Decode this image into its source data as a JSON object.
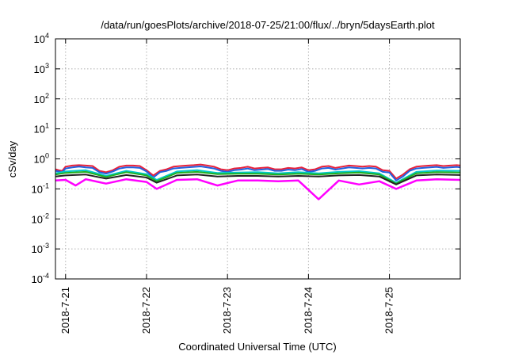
{
  "chart_data": {
    "type": "line",
    "title": "/data/run/goesPlots/archive/2018-07-25/21:00/flux/../bryn/5daysEarth.plot",
    "xlabel": "Coordinated Universal Time (UTC)",
    "ylabel": "cSv/day",
    "y_scale": "log",
    "ylim": [
      0.0001,
      10000
    ],
    "y_ticks": [
      {
        "value": 0.0001,
        "base": "10",
        "exp": "-4"
      },
      {
        "value": 0.001,
        "base": "10",
        "exp": "-3"
      },
      {
        "value": 0.01,
        "base": "10",
        "exp": "-2"
      },
      {
        "value": 0.1,
        "base": "10",
        "exp": "-1"
      },
      {
        "value": 1,
        "base": "10",
        "exp": "0"
      },
      {
        "value": 10,
        "base": "10",
        "exp": "1"
      },
      {
        "value": 100,
        "base": "10",
        "exp": "2"
      },
      {
        "value": 1000,
        "base": "10",
        "exp": "3"
      },
      {
        "value": 10000,
        "base": "10",
        "exp": "4"
      }
    ],
    "xlim": [
      "2018-07-20 21:00",
      "2018-07-25 21:00"
    ],
    "x_ticks": [
      {
        "value": "2018-07-21 00:00",
        "label": "2018-7-21"
      },
      {
        "value": "2018-07-22 00:00",
        "label": "2018-7-22"
      },
      {
        "value": "2018-07-23 00:00",
        "label": "2018-7-23"
      },
      {
        "value": "2018-07-24 00:00",
        "label": "2018-7-24"
      },
      {
        "value": "2018-07-25 00:00",
        "label": "2018-7-25"
      }
    ],
    "grid": true,
    "legend": "none",
    "series": [
      {
        "color": "#e8203a",
        "values": [
          [
            "2018-07-20 21:00",
            0.45
          ],
          [
            "2018-07-20 22:00",
            0.42
          ],
          [
            "2018-07-20 23:00",
            0.4
          ],
          [
            "2018-07-21 00:00",
            0.55
          ],
          [
            "2018-07-21 02:00",
            0.6
          ],
          [
            "2018-07-21 04:00",
            0.62
          ],
          [
            "2018-07-21 06:00",
            0.6
          ],
          [
            "2018-07-21 08:00",
            0.58
          ],
          [
            "2018-07-21 10:00",
            0.4
          ],
          [
            "2018-07-21 12:00",
            0.36
          ],
          [
            "2018-07-21 14:00",
            0.42
          ],
          [
            "2018-07-21 16:00",
            0.55
          ],
          [
            "2018-07-21 18:00",
            0.6
          ],
          [
            "2018-07-21 20:00",
            0.6
          ],
          [
            "2018-07-21 22:00",
            0.58
          ],
          [
            "2018-07-22 00:00",
            0.42
          ],
          [
            "2018-07-22 02:00",
            0.28
          ],
          [
            "2018-07-22 04:00",
            0.4
          ],
          [
            "2018-07-22 06:00",
            0.45
          ],
          [
            "2018-07-22 08:00",
            0.55
          ],
          [
            "2018-07-22 10:00",
            0.58
          ],
          [
            "2018-07-22 12:00",
            0.6
          ],
          [
            "2018-07-22 14:00",
            0.62
          ],
          [
            "2018-07-22 16:00",
            0.65
          ],
          [
            "2018-07-22 18:00",
            0.6
          ],
          [
            "2018-07-22 20:00",
            0.55
          ],
          [
            "2018-07-22 22:00",
            0.45
          ],
          [
            "2018-07-23 00:00",
            0.42
          ],
          [
            "2018-07-23 02:00",
            0.48
          ],
          [
            "2018-07-23 04:00",
            0.5
          ],
          [
            "2018-07-23 06:00",
            0.55
          ],
          [
            "2018-07-23 08:00",
            0.48
          ],
          [
            "2018-07-23 10:00",
            0.5
          ],
          [
            "2018-07-23 12:00",
            0.52
          ],
          [
            "2018-07-23 14:00",
            0.45
          ],
          [
            "2018-07-23 16:00",
            0.45
          ],
          [
            "2018-07-23 18:00",
            0.5
          ],
          [
            "2018-07-23 20:00",
            0.48
          ],
          [
            "2018-07-23 22:00",
            0.52
          ],
          [
            "2018-07-24 00:00",
            0.42
          ],
          [
            "2018-07-24 02:00",
            0.45
          ],
          [
            "2018-07-24 04:00",
            0.55
          ],
          [
            "2018-07-24 06:00",
            0.58
          ],
          [
            "2018-07-24 08:00",
            0.5
          ],
          [
            "2018-07-24 10:00",
            0.55
          ],
          [
            "2018-07-24 12:00",
            0.6
          ],
          [
            "2018-07-24 14:00",
            0.58
          ],
          [
            "2018-07-24 16:00",
            0.55
          ],
          [
            "2018-07-24 18:00",
            0.58
          ],
          [
            "2018-07-24 20:00",
            0.55
          ],
          [
            "2018-07-24 22:00",
            0.42
          ],
          [
            "2018-07-25 00:00",
            0.4
          ],
          [
            "2018-07-25 02:00",
            0.22
          ],
          [
            "2018-07-25 04:00",
            0.3
          ],
          [
            "2018-07-25 06:00",
            0.45
          ],
          [
            "2018-07-25 08:00",
            0.55
          ],
          [
            "2018-07-25 10:00",
            0.58
          ],
          [
            "2018-07-25 12:00",
            0.6
          ],
          [
            "2018-07-25 14:00",
            0.62
          ],
          [
            "2018-07-25 16:00",
            0.58
          ],
          [
            "2018-07-25 18:00",
            0.6
          ],
          [
            "2018-07-25 20:00",
            0.62
          ],
          [
            "2018-07-25 21:00",
            0.6
          ]
        ]
      },
      {
        "color": "#2060e0",
        "values": [
          [
            "2018-07-20 21:00",
            0.4
          ],
          [
            "2018-07-20 22:00",
            0.38
          ],
          [
            "2018-07-20 23:00",
            0.36
          ],
          [
            "2018-07-21 00:00",
            0.48
          ],
          [
            "2018-07-21 02:00",
            0.52
          ],
          [
            "2018-07-21 04:00",
            0.55
          ],
          [
            "2018-07-21 06:00",
            0.52
          ],
          [
            "2018-07-21 08:00",
            0.5
          ],
          [
            "2018-07-21 10:00",
            0.36
          ],
          [
            "2018-07-21 12:00",
            0.32
          ],
          [
            "2018-07-21 14:00",
            0.38
          ],
          [
            "2018-07-21 16:00",
            0.48
          ],
          [
            "2018-07-21 18:00",
            0.52
          ],
          [
            "2018-07-21 20:00",
            0.52
          ],
          [
            "2018-07-21 22:00",
            0.5
          ],
          [
            "2018-07-22 00:00",
            0.38
          ],
          [
            "2018-07-22 02:00",
            0.24
          ],
          [
            "2018-07-22 04:00",
            0.36
          ],
          [
            "2018-07-22 06:00",
            0.4
          ],
          [
            "2018-07-22 08:00",
            0.48
          ],
          [
            "2018-07-22 10:00",
            0.5
          ],
          [
            "2018-07-22 12:00",
            0.52
          ],
          [
            "2018-07-22 14:00",
            0.54
          ],
          [
            "2018-07-22 16:00",
            0.56
          ],
          [
            "2018-07-22 18:00",
            0.52
          ],
          [
            "2018-07-22 20:00",
            0.48
          ],
          [
            "2018-07-22 22:00",
            0.4
          ],
          [
            "2018-07-23 00:00",
            0.37
          ],
          [
            "2018-07-23 02:00",
            0.42
          ],
          [
            "2018-07-23 04:00",
            0.44
          ],
          [
            "2018-07-23 06:00",
            0.48
          ],
          [
            "2018-07-23 08:00",
            0.42
          ],
          [
            "2018-07-23 10:00",
            0.44
          ],
          [
            "2018-07-23 12:00",
            0.46
          ],
          [
            "2018-07-23 14:00",
            0.4
          ],
          [
            "2018-07-23 16:00",
            0.4
          ],
          [
            "2018-07-23 18:00",
            0.44
          ],
          [
            "2018-07-23 20:00",
            0.42
          ],
          [
            "2018-07-23 22:00",
            0.46
          ],
          [
            "2018-07-24 00:00",
            0.37
          ],
          [
            "2018-07-24 02:00",
            0.4
          ],
          [
            "2018-07-24 04:00",
            0.48
          ],
          [
            "2018-07-24 06:00",
            0.5
          ],
          [
            "2018-07-24 08:00",
            0.44
          ],
          [
            "2018-07-24 10:00",
            0.48
          ],
          [
            "2018-07-24 12:00",
            0.52
          ],
          [
            "2018-07-24 14:00",
            0.5
          ],
          [
            "2018-07-24 16:00",
            0.48
          ],
          [
            "2018-07-24 18:00",
            0.5
          ],
          [
            "2018-07-24 20:00",
            0.48
          ],
          [
            "2018-07-24 22:00",
            0.37
          ],
          [
            "2018-07-25 00:00",
            0.35
          ],
          [
            "2018-07-25 02:00",
            0.19
          ],
          [
            "2018-07-25 04:00",
            0.26
          ],
          [
            "2018-07-25 06:00",
            0.4
          ],
          [
            "2018-07-25 08:00",
            0.48
          ],
          [
            "2018-07-25 10:00",
            0.5
          ],
          [
            "2018-07-25 12:00",
            0.52
          ],
          [
            "2018-07-25 14:00",
            0.54
          ],
          [
            "2018-07-25 16:00",
            0.5
          ],
          [
            "2018-07-25 18:00",
            0.52
          ],
          [
            "2018-07-25 20:00",
            0.54
          ],
          [
            "2018-07-25 21:00",
            0.52
          ]
        ]
      },
      {
        "color": "#00c8c8",
        "values": [
          [
            "2018-07-20 21:00",
            0.33
          ],
          [
            "2018-07-21 00:00",
            0.38
          ],
          [
            "2018-07-21 06:00",
            0.42
          ],
          [
            "2018-07-21 12:00",
            0.27
          ],
          [
            "2018-07-21 18:00",
            0.4
          ],
          [
            "2018-07-22 00:00",
            0.31
          ],
          [
            "2018-07-22 03:00",
            0.2
          ],
          [
            "2018-07-22 09:00",
            0.38
          ],
          [
            "2018-07-22 15:00",
            0.42
          ],
          [
            "2018-07-22 21:00",
            0.34
          ],
          [
            "2018-07-23 03:00",
            0.35
          ],
          [
            "2018-07-23 09:00",
            0.36
          ],
          [
            "2018-07-23 15:00",
            0.33
          ],
          [
            "2018-07-23 21:00",
            0.36
          ],
          [
            "2018-07-24 03:00",
            0.33
          ],
          [
            "2018-07-24 09:00",
            0.37
          ],
          [
            "2018-07-24 15:00",
            0.39
          ],
          [
            "2018-07-24 21:00",
            0.33
          ],
          [
            "2018-07-25 02:00",
            0.16
          ],
          [
            "2018-07-25 08:00",
            0.37
          ],
          [
            "2018-07-25 14:00",
            0.41
          ],
          [
            "2018-07-25 21:00",
            0.4
          ]
        ]
      },
      {
        "color": "#20b020",
        "values": [
          [
            "2018-07-20 21:00",
            0.3
          ],
          [
            "2018-07-21 00:00",
            0.34
          ],
          [
            "2018-07-21 06:00",
            0.37
          ],
          [
            "2018-07-21 12:00",
            0.25
          ],
          [
            "2018-07-21 18:00",
            0.36
          ],
          [
            "2018-07-22 00:00",
            0.28
          ],
          [
            "2018-07-22 03:00",
            0.18
          ],
          [
            "2018-07-22 09:00",
            0.34
          ],
          [
            "2018-07-22 15:00",
            0.37
          ],
          [
            "2018-07-22 21:00",
            0.31
          ],
          [
            "2018-07-23 03:00",
            0.32
          ],
          [
            "2018-07-23 09:00",
            0.32
          ],
          [
            "2018-07-23 15:00",
            0.3
          ],
          [
            "2018-07-23 21:00",
            0.32
          ],
          [
            "2018-07-24 03:00",
            0.3
          ],
          [
            "2018-07-24 09:00",
            0.33
          ],
          [
            "2018-07-24 15:00",
            0.35
          ],
          [
            "2018-07-24 21:00",
            0.3
          ],
          [
            "2018-07-25 02:00",
            0.15
          ],
          [
            "2018-07-25 08:00",
            0.33
          ],
          [
            "2018-07-25 14:00",
            0.36
          ],
          [
            "2018-07-25 21:00",
            0.35
          ]
        ]
      },
      {
        "color": "#222222",
        "values": [
          [
            "2018-07-20 21:00",
            0.26
          ],
          [
            "2018-07-21 00:00",
            0.28
          ],
          [
            "2018-07-21 06:00",
            0.3
          ],
          [
            "2018-07-21 12:00",
            0.22
          ],
          [
            "2018-07-21 18:00",
            0.29
          ],
          [
            "2018-07-22 00:00",
            0.24
          ],
          [
            "2018-07-22 03:00",
            0.16
          ],
          [
            "2018-07-22 09:00",
            0.28
          ],
          [
            "2018-07-22 15:00",
            0.3
          ],
          [
            "2018-07-22 21:00",
            0.26
          ],
          [
            "2018-07-23 03:00",
            0.27
          ],
          [
            "2018-07-23 09:00",
            0.27
          ],
          [
            "2018-07-23 15:00",
            0.26
          ],
          [
            "2018-07-23 21:00",
            0.27
          ],
          [
            "2018-07-24 03:00",
            0.26
          ],
          [
            "2018-07-24 09:00",
            0.28
          ],
          [
            "2018-07-24 15:00",
            0.29
          ],
          [
            "2018-07-24 21:00",
            0.26
          ],
          [
            "2018-07-25 02:00",
            0.14
          ],
          [
            "2018-07-25 08:00",
            0.28
          ],
          [
            "2018-07-25 14:00",
            0.3
          ],
          [
            "2018-07-25 21:00",
            0.29
          ]
        ]
      },
      {
        "color": "#ff00ff",
        "values": [
          [
            "2018-07-20 21:00",
            0.19
          ],
          [
            "2018-07-21 00:00",
            0.2
          ],
          [
            "2018-07-21 03:00",
            0.13
          ],
          [
            "2018-07-21 06:00",
            0.21
          ],
          [
            "2018-07-21 12:00",
            0.15
          ],
          [
            "2018-07-21 18:00",
            0.21
          ],
          [
            "2018-07-22 00:00",
            0.17
          ],
          [
            "2018-07-22 03:00",
            0.1
          ],
          [
            "2018-07-22 09:00",
            0.2
          ],
          [
            "2018-07-22 15:00",
            0.21
          ],
          [
            "2018-07-22 21:00",
            0.13
          ],
          [
            "2018-07-23 03:00",
            0.19
          ],
          [
            "2018-07-23 09:00",
            0.19
          ],
          [
            "2018-07-23 15:00",
            0.18
          ],
          [
            "2018-07-23 21:00",
            0.19
          ],
          [
            "2018-07-24 03:00",
            0.045
          ],
          [
            "2018-07-24 09:00",
            0.19
          ],
          [
            "2018-07-24 15:00",
            0.14
          ],
          [
            "2018-07-24 21:00",
            0.18
          ],
          [
            "2018-07-25 02:00",
            0.1
          ],
          [
            "2018-07-25 08:00",
            0.19
          ],
          [
            "2018-07-25 14:00",
            0.21
          ],
          [
            "2018-07-25 21:00",
            0.2
          ]
        ]
      }
    ]
  }
}
